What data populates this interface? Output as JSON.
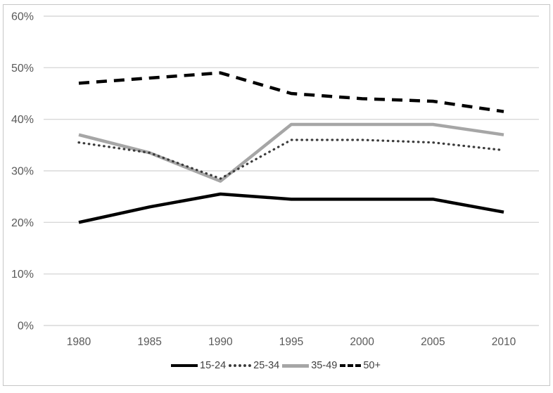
{
  "chart_data": {
    "type": "line",
    "x_categories": [
      "1980",
      "1985",
      "1990",
      "1995",
      "2000",
      "2005",
      "2010"
    ],
    "y_tick_labels": [
      "60%",
      "50%",
      "40%",
      "30%",
      "20%",
      "10%",
      "0%"
    ],
    "ylim": [
      0,
      60
    ],
    "y_step": 10,
    "y_unit": "%",
    "grid": "horizontal-only",
    "legend_position": "bottom-center",
    "series": [
      {
        "name": "15-24",
        "style": "solid",
        "color": "#000000",
        "values": [
          20,
          23,
          25.5,
          24.5,
          24.5,
          24.5,
          22
        ]
      },
      {
        "name": "25-34",
        "style": "dotted",
        "color": "#3b3b3b",
        "values": [
          35.5,
          33.5,
          28.5,
          36,
          36,
          35.5,
          34
        ]
      },
      {
        "name": "35-49",
        "style": "solid",
        "color": "#a6a6a6",
        "values": [
          37,
          33.5,
          28,
          39,
          39,
          39,
          37
        ]
      },
      {
        "name": "50+",
        "style": "dashed",
        "color": "#000000",
        "values": [
          47,
          48,
          49,
          45,
          44,
          43.5,
          41.5
        ]
      }
    ],
    "colors": {
      "gridline": "#d9d9d9",
      "axis_label": "#595959",
      "legend_label": "#404040",
      "frame_border": "#c6c6c6",
      "background": "#ffffff"
    }
  }
}
